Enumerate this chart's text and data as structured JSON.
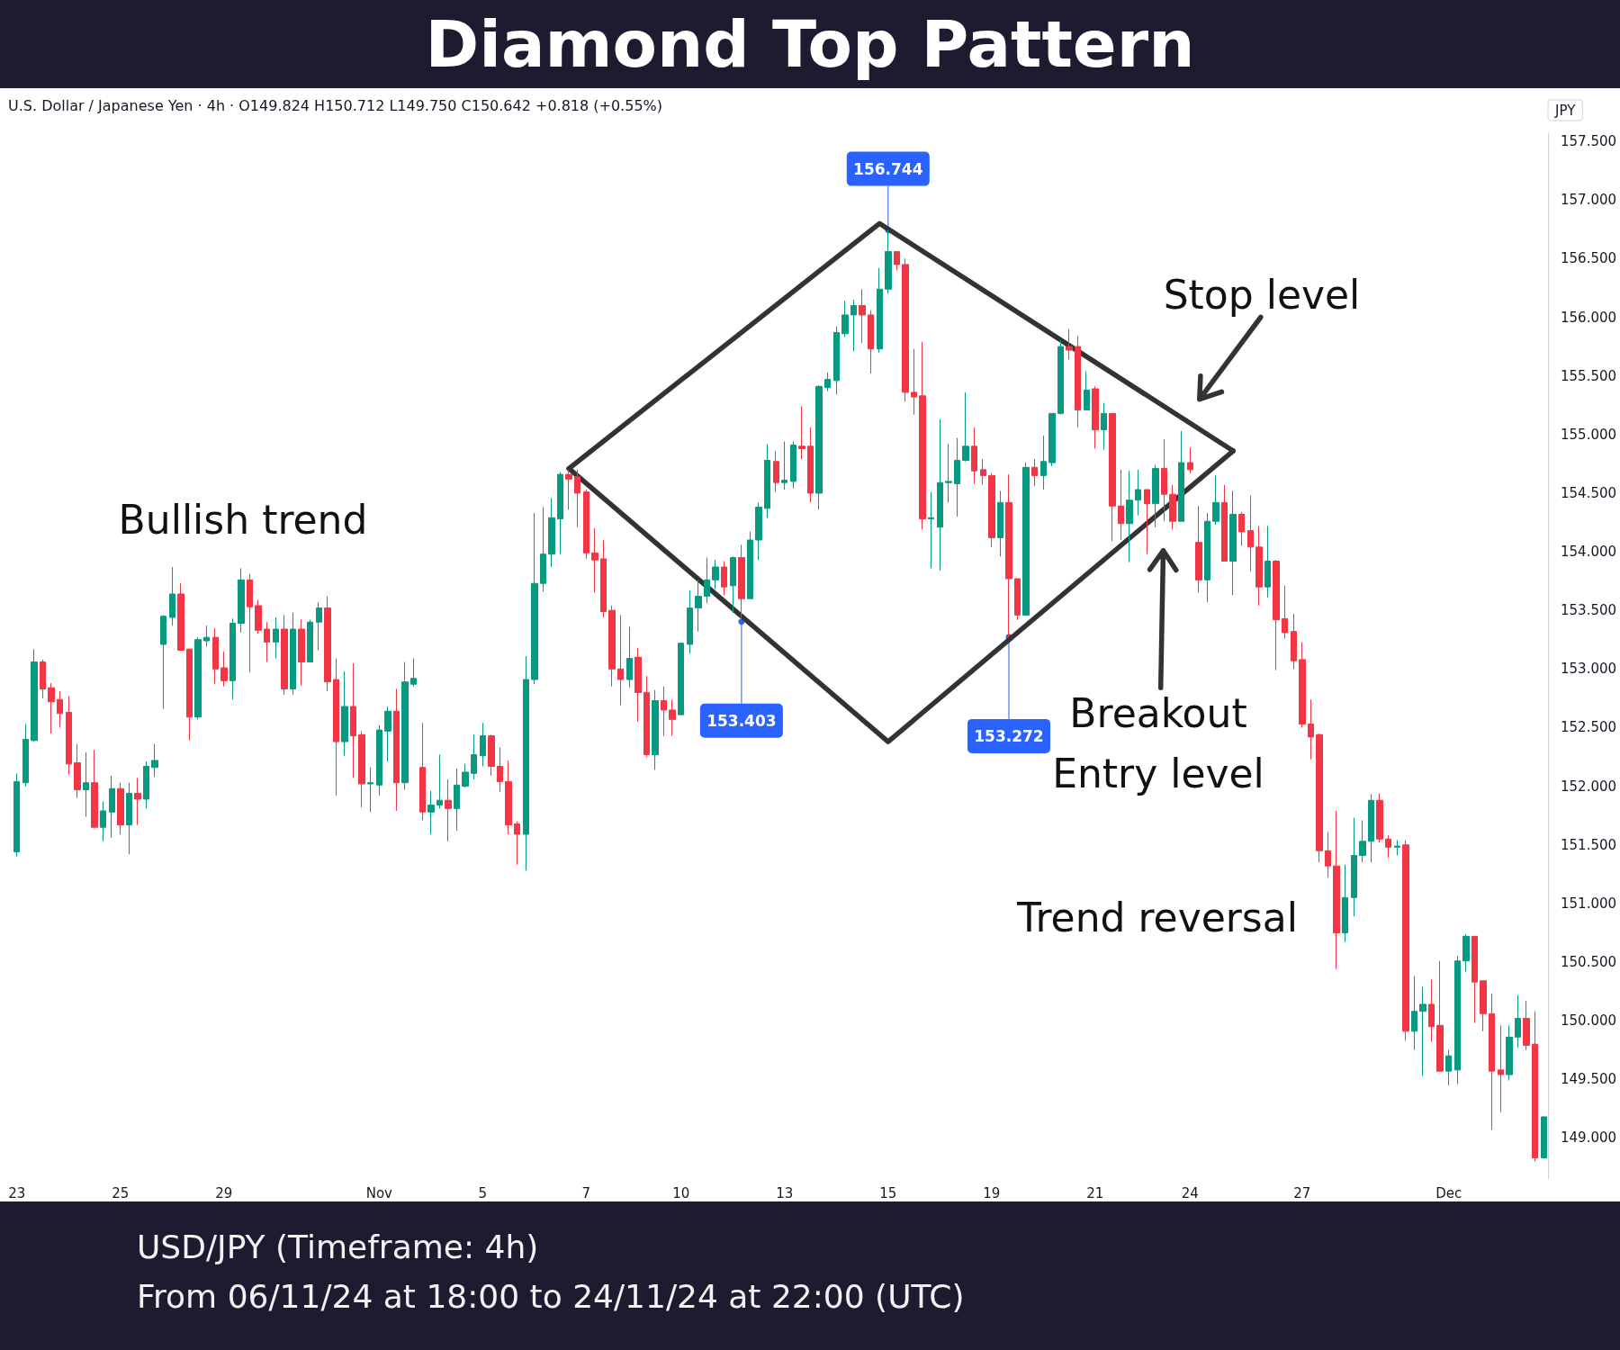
{
  "chart_data": {
    "type": "candlestick",
    "title": "Diamond Top Pattern",
    "subtitle": "USD/JPY (Timeframe: 4h)",
    "ylabel": "JPY",
    "annotations": [
      "U.S. Dollar / Japanese Yen · 4h · O149.824 H150.712 L149.750 C150.642 +0.818 (+0.55%)",
      "Bullish trend",
      "Stop level",
      "Breakout",
      "Entry level",
      "Trend reversal",
      {
        "text": "156.744",
        "y": 156.744
      },
      {
        "text": "153.403",
        "y": 153.403
      },
      {
        "text": "153.272",
        "y": 153.272
      },
      "From 06/11/24 at 18:00 to 24/11/24 at 22:00 (UTC)"
    ],
    "categories": [
      "23",
      null,
      null,
      null,
      null,
      null,
      null,
      null,
      null,
      null,
      null,
      null,
      "25",
      null,
      null,
      null,
      null,
      null,
      null,
      null,
      null,
      null,
      null,
      null,
      "29",
      null,
      null,
      null,
      null,
      null,
      null,
      null,
      null,
      null,
      null,
      null,
      null,
      null,
      null,
      null,
      null,
      null,
      "Nov",
      null,
      null,
      null,
      null,
      null,
      null,
      null,
      null,
      null,
      null,
      null,
      "5",
      null,
      null,
      null,
      null,
      null,
      null,
      null,
      null,
      null,
      null,
      null,
      "7",
      null,
      null,
      null,
      null,
      null,
      null,
      null,
      null,
      null,
      null,
      "10",
      null,
      null,
      null,
      null,
      null,
      null,
      null,
      null,
      null,
      null,
      null,
      "13",
      null,
      null,
      null,
      null,
      null,
      null,
      null,
      null,
      null,
      null,
      null,
      "15",
      null,
      null,
      null,
      null,
      null,
      null,
      null,
      null,
      null,
      null,
      null,
      "19",
      null,
      null,
      null,
      null,
      null,
      null,
      null,
      null,
      null,
      null,
      null,
      "21",
      null,
      null,
      null,
      null,
      null,
      null,
      null,
      null,
      null,
      null,
      "24",
      null,
      null,
      null,
      null,
      null,
      null,
      null,
      null,
      null,
      null,
      null,
      null,
      "27",
      null,
      null,
      null,
      null,
      null,
      null,
      null,
      null,
      null,
      null,
      null,
      null,
      null,
      null,
      null,
      null,
      "Dec",
      null,
      null,
      null,
      null,
      null,
      null,
      null,
      null,
      null,
      null,
      null
    ],
    "ohlc": [
      [
        151.44,
        152.11,
        151.4,
        152.04
      ],
      [
        152.03,
        152.53,
        152.0,
        152.4
      ],
      [
        152.39,
        153.17,
        152.38,
        153.06
      ],
      [
        153.06,
        153.08,
        152.75,
        152.83
      ],
      [
        152.84,
        152.88,
        152.45,
        152.72
      ],
      [
        152.74,
        152.81,
        152.5,
        152.62
      ],
      [
        152.63,
        152.77,
        152.1,
        152.19
      ],
      [
        152.2,
        152.36,
        151.9,
        151.97
      ],
      [
        151.97,
        152.29,
        151.74,
        152.03
      ],
      [
        152.03,
        152.31,
        151.64,
        151.65
      ],
      [
        151.65,
        151.87,
        151.53,
        151.79
      ],
      [
        151.78,
        152.09,
        151.56,
        151.98
      ],
      [
        151.98,
        152.03,
        151.59,
        151.67
      ],
      [
        151.67,
        152.03,
        151.42,
        151.94
      ],
      [
        151.94,
        152.07,
        151.67,
        151.89
      ],
      [
        151.89,
        152.21,
        151.81,
        152.17
      ],
      [
        152.16,
        152.36,
        152.08,
        152.22
      ],
      [
        153.21,
        153.46,
        152.66,
        153.45
      ],
      [
        153.44,
        153.87,
        153.37,
        153.64
      ],
      [
        153.64,
        153.73,
        153.16,
        153.16
      ],
      [
        153.17,
        153.17,
        152.39,
        152.59
      ],
      [
        152.59,
        153.27,
        152.57,
        153.25
      ],
      [
        153.24,
        153.37,
        153.19,
        153.27
      ],
      [
        153.27,
        153.35,
        152.87,
        153.0
      ],
      [
        153.01,
        153.15,
        152.85,
        152.9
      ],
      [
        152.9,
        153.43,
        152.74,
        153.39
      ],
      [
        153.39,
        153.86,
        153.31,
        153.76
      ],
      [
        153.76,
        153.81,
        152.97,
        153.53
      ],
      [
        153.54,
        153.59,
        153.3,
        153.33
      ],
      [
        153.34,
        153.4,
        153.06,
        153.23
      ],
      [
        153.23,
        153.44,
        153.09,
        153.34
      ],
      [
        153.34,
        153.46,
        152.78,
        152.83
      ],
      [
        152.83,
        153.48,
        152.78,
        153.34
      ],
      [
        153.34,
        153.42,
        152.86,
        153.06
      ],
      [
        153.06,
        153.42,
        153.06,
        153.4
      ],
      [
        153.4,
        153.57,
        153.16,
        153.52
      ],
      [
        153.52,
        153.62,
        152.81,
        152.89
      ],
      [
        152.91,
        153.09,
        151.92,
        152.38
      ],
      [
        152.38,
        152.98,
        152.26,
        152.68
      ],
      [
        152.68,
        153.05,
        152.07,
        152.43
      ],
      [
        152.44,
        152.47,
        151.82,
        152.02
      ],
      [
        152.02,
        152.16,
        151.78,
        152.03
      ],
      [
        152.01,
        152.52,
        151.92,
        152.48
      ],
      [
        152.47,
        152.68,
        152.21,
        152.64
      ],
      [
        152.64,
        152.83,
        151.79,
        152.03
      ],
      [
        152.03,
        153.06,
        151.97,
        152.89
      ],
      [
        152.87,
        153.09,
        152.85,
        152.92
      ],
      [
        152.16,
        152.54,
        151.71,
        151.78
      ],
      [
        151.78,
        151.96,
        151.59,
        151.84
      ],
      [
        151.84,
        152.27,
        151.81,
        151.88
      ],
      [
        151.88,
        152.06,
        151.53,
        151.81
      ],
      [
        151.81,
        152.15,
        151.62,
        152.01
      ],
      [
        152.0,
        152.19,
        151.99,
        152.12
      ],
      [
        152.11,
        152.44,
        152.06,
        152.27
      ],
      [
        152.26,
        152.54,
        152.17,
        152.43
      ],
      [
        152.43,
        152.44,
        152.09,
        152.17
      ],
      [
        152.17,
        152.33,
        151.95,
        152.04
      ],
      [
        152.04,
        152.22,
        151.59,
        151.67
      ],
      [
        151.68,
        151.7,
        151.33,
        151.59
      ],
      [
        151.59,
        153.11,
        151.28,
        152.91
      ],
      [
        152.91,
        154.33,
        152.87,
        153.73
      ],
      [
        153.73,
        154.38,
        153.66,
        153.98
      ],
      [
        153.98,
        154.46,
        153.87,
        154.29
      ],
      [
        154.28,
        154.68,
        153.98,
        154.66
      ],
      [
        154.66,
        154.7,
        154.36,
        154.62
      ],
      [
        154.64,
        154.7,
        154.21,
        154.5
      ],
      [
        154.51,
        154.53,
        153.94,
        153.99
      ],
      [
        153.99,
        154.2,
        153.65,
        153.93
      ],
      [
        153.94,
        154.1,
        153.44,
        153.49
      ],
      [
        153.5,
        153.54,
        152.85,
        153.0
      ],
      [
        153.0,
        153.46,
        152.69,
        152.91
      ],
      [
        152.91,
        153.36,
        152.84,
        153.09
      ],
      [
        153.1,
        153.18,
        152.55,
        152.8
      ],
      [
        152.8,
        152.94,
        152.25,
        152.27
      ],
      [
        152.27,
        152.82,
        152.14,
        152.73
      ],
      [
        152.73,
        152.85,
        152.43,
        152.65
      ],
      [
        152.65,
        152.74,
        152.43,
        152.57
      ],
      [
        152.61,
        153.22,
        152.61,
        153.22
      ],
      [
        153.21,
        153.67,
        153.13,
        153.52
      ],
      [
        153.52,
        153.76,
        153.32,
        153.62
      ],
      [
        153.62,
        153.95,
        153.56,
        153.76
      ],
      [
        153.76,
        153.93,
        153.68,
        153.87
      ],
      [
        153.87,
        153.92,
        153.63,
        153.7
      ],
      [
        153.71,
        153.96,
        153.48,
        153.95
      ],
      [
        153.95,
        154.06,
        153.403,
        153.6
      ],
      [
        153.6,
        154.17,
        153.6,
        154.1
      ],
      [
        154.1,
        154.42,
        153.93,
        154.38
      ],
      [
        154.37,
        154.92,
        154.29,
        154.78
      ],
      [
        154.77,
        154.86,
        154.51,
        154.59
      ],
      [
        154.59,
        154.94,
        154.53,
        154.61
      ],
      [
        154.6,
        154.94,
        154.54,
        154.91
      ],
      [
        154.9,
        155.24,
        154.79,
        154.88
      ],
      [
        154.9,
        155.06,
        154.42,
        154.5
      ],
      [
        154.5,
        155.42,
        154.36,
        155.41
      ],
      [
        155.4,
        155.53,
        155.37,
        155.47
      ],
      [
        155.46,
        155.92,
        155.34,
        155.87
      ],
      [
        155.86,
        156.14,
        155.83,
        156.02
      ],
      [
        156.02,
        156.15,
        155.71,
        156.1
      ],
      [
        156.1,
        156.24,
        155.78,
        156.02
      ],
      [
        156.02,
        156.06,
        155.52,
        155.73
      ],
      [
        155.73,
        156.42,
        155.7,
        156.24
      ],
      [
        156.24,
        156.744,
        156.2,
        156.56
      ],
      [
        156.56,
        156.56,
        156.4,
        156.45
      ],
      [
        156.45,
        156.5,
        155.28,
        155.36
      ],
      [
        155.36,
        155.73,
        155.17,
        155.32
      ],
      [
        155.33,
        155.79,
        154.19,
        154.28
      ],
      [
        154.28,
        154.51,
        153.86,
        154.29
      ],
      [
        154.21,
        155.13,
        153.84,
        154.59
      ],
      [
        154.59,
        154.92,
        154.42,
        154.6
      ],
      [
        154.58,
        154.97,
        154.3,
        154.78
      ],
      [
        154.78,
        155.36,
        154.77,
        154.9
      ],
      [
        154.9,
        155.06,
        154.58,
        154.69
      ],
      [
        154.7,
        154.79,
        154.57,
        154.65
      ],
      [
        154.65,
        154.67,
        154.04,
        154.12
      ],
      [
        154.12,
        154.52,
        153.96,
        154.42
      ],
      [
        154.42,
        154.66,
        153.272,
        153.77
      ],
      [
        153.77,
        153.77,
        153.42,
        153.46
      ],
      [
        153.46,
        154.76,
        153.46,
        154.72
      ],
      [
        154.72,
        154.79,
        154.56,
        154.65
      ],
      [
        154.65,
        154.99,
        154.53,
        154.77
      ],
      [
        154.76,
        155.18,
        154.73,
        155.18
      ],
      [
        155.18,
        155.81,
        155.17,
        155.75
      ],
      [
        155.75,
        155.9,
        155.64,
        155.72
      ],
      [
        155.75,
        155.84,
        155.06,
        155.21
      ],
      [
        155.21,
        155.54,
        155.21,
        155.38
      ],
      [
        155.39,
        155.41,
        154.88,
        155.04
      ],
      [
        155.04,
        155.27,
        154.87,
        155.18
      ],
      [
        155.18,
        155.18,
        154.09,
        154.39
      ],
      [
        154.39,
        154.7,
        154.1,
        154.24
      ],
      [
        154.24,
        154.69,
        153.91,
        154.44
      ],
      [
        154.44,
        154.7,
        154.31,
        154.53
      ],
      [
        154.53,
        154.53,
        153.98,
        154.41
      ],
      [
        154.41,
        154.74,
        154.21,
        154.71
      ],
      [
        154.71,
        154.96,
        154.26,
        154.49
      ],
      [
        154.49,
        154.57,
        154.19,
        154.26
      ],
      [
        154.26,
        155.03,
        154.26,
        154.76
      ],
      [
        154.76,
        154.89,
        154.67,
        154.7
      ],
      [
        154.08,
        154.39,
        153.65,
        153.76
      ],
      [
        153.76,
        154.33,
        153.57,
        154.26
      ],
      [
        154.26,
        154.65,
        154.23,
        154.42
      ],
      [
        154.42,
        154.57,
        153.92,
        153.92
      ],
      [
        153.92,
        154.52,
        153.63,
        154.32
      ],
      [
        154.32,
        154.34,
        154.05,
        154.17
      ],
      [
        154.18,
        154.48,
        153.83,
        154.04
      ],
      [
        154.04,
        154.22,
        153.54,
        153.7
      ],
      [
        153.7,
        154.22,
        153.61,
        153.92
      ],
      [
        153.92,
        153.93,
        152.99,
        153.42
      ],
      [
        153.43,
        153.71,
        153.26,
        153.31
      ],
      [
        153.32,
        153.47,
        153.0,
        153.07
      ],
      [
        153.08,
        153.23,
        152.5,
        152.53
      ],
      [
        152.53,
        152.74,
        152.23,
        152.42
      ],
      [
        152.44,
        152.45,
        151.35,
        151.45
      ],
      [
        151.45,
        151.61,
        151.22,
        151.32
      ],
      [
        151.32,
        151.79,
        150.44,
        150.75
      ],
      [
        150.75,
        151.33,
        150.67,
        151.05
      ],
      [
        151.05,
        151.73,
        150.89,
        151.41
      ],
      [
        151.41,
        151.71,
        151.35,
        151.53
      ],
      [
        151.53,
        151.93,
        151.35,
        151.88
      ],
      [
        151.88,
        151.94,
        151.52,
        151.55
      ],
      [
        151.55,
        151.58,
        151.39,
        151.48
      ],
      [
        151.48,
        151.54,
        151.41,
        151.49
      ],
      [
        151.5,
        151.54,
        149.83,
        149.91
      ],
      [
        149.91,
        150.38,
        149.75,
        150.08
      ],
      [
        150.08,
        150.29,
        149.53,
        150.14
      ],
      [
        150.14,
        150.35,
        149.82,
        149.95
      ],
      [
        149.96,
        150.51,
        149.57,
        149.57
      ],
      [
        149.57,
        149.75,
        149.45,
        149.7
      ],
      [
        149.58,
        150.55,
        149.46,
        150.51
      ],
      [
        150.51,
        150.74,
        150.42,
        150.72
      ],
      [
        150.72,
        150.72,
        149.98,
        150.33
      ],
      [
        150.34,
        150.34,
        149.91,
        150.06
      ],
      [
        150.06,
        150.23,
        149.07,
        149.57
      ],
      [
        149.58,
        149.96,
        149.22,
        149.54
      ],
      [
        149.54,
        149.96,
        149.49,
        149.86
      ],
      [
        149.86,
        150.22,
        149.77,
        150.02
      ],
      [
        150.02,
        150.17,
        149.75,
        149.79
      ],
      [
        149.8,
        150.08,
        148.8,
        148.83
      ],
      [
        148.83,
        149.18,
        148.83,
        149.18
      ]
    ],
    "colors": [
      "#089981",
      "#089981",
      "#089981",
      "#f23645",
      "#f23645",
      "#f23645",
      "#f23645",
      "#f23645",
      "#089981",
      "#f23645",
      "#089981",
      "#089981",
      "#f23645",
      "#089981",
      "#f23645",
      "#089981",
      "#089981",
      "#089981",
      "#089981",
      "#f23645",
      "#f23645",
      "#089981",
      "#089981",
      "#f23645",
      "#f23645",
      "#089981",
      "#089981",
      "#f23645",
      "#f23645",
      "#f23645",
      "#089981",
      "#f23645",
      "#089981",
      "#f23645",
      "#089981",
      "#089981",
      "#f23645",
      "#f23645",
      "#089981",
      "#f23645",
      "#f23645",
      "#089981",
      "#089981",
      "#089981",
      "#f23645",
      "#089981",
      "#089981",
      "#f23645",
      "#089981",
      "#089981",
      "#f23645",
      "#089981",
      "#089981",
      "#089981",
      "#089981",
      "#f23645",
      "#f23645",
      "#f23645",
      "#f23645",
      "#089981",
      "#089981",
      "#089981",
      "#089981",
      "#089981",
      "#f23645",
      "#f23645",
      "#f23645",
      "#f23645",
      "#f23645",
      "#f23645",
      "#f23645",
      "#089981",
      "#f23645",
      "#f23645",
      "#089981",
      "#f23645",
      "#f23645",
      "#089981",
      "#089981",
      "#089981",
      "#089981",
      "#089981",
      "#f23645",
      "#089981",
      "#f23645",
      "#089981",
      "#089981",
      "#089981",
      "#f23645",
      "#089981",
      "#089981",
      "#f23645",
      "#f23645",
      "#089981",
      "#089981",
      "#089981",
      "#089981",
      "#089981",
      "#f23645",
      "#f23645",
      "#089981",
      "#089981",
      "#f23645",
      "#f23645",
      "#f23645",
      "#f23645",
      "#089981",
      "#089981",
      "#089981",
      "#089981",
      "#089981",
      "#f23645",
      "#f23645",
      "#f23645",
      "#089981",
      "#f23645",
      "#f23645",
      "#089981",
      "#f23645",
      "#089981",
      "#089981",
      "#089981",
      "#f23645",
      "#f23645",
      "#089981",
      "#f23645",
      "#089981",
      "#f23645",
      "#f23645",
      "#089981",
      "#089981",
      "#f23645",
      "#089981",
      "#f23645",
      "#f23645",
      "#089981",
      "#f23645",
      "#f23645",
      "#089981",
      "#089981",
      "#f23645",
      "#089981",
      "#f23645",
      "#f23645",
      "#f23645",
      "#089981",
      "#f23645",
      "#f23645",
      "#f23645",
      "#f23645",
      "#f23645",
      "#f23645",
      "#f23645",
      "#f23645",
      "#089981",
      "#089981",
      "#089981",
      "#089981",
      "#f23645",
      "#f23645",
      "#089981",
      "#f23645",
      "#089981",
      "#089981",
      "#f23645",
      "#f23645",
      "#089981",
      "#089981",
      "#089981",
      "#f23645",
      "#f23645",
      "#f23645",
      "#f23645",
      "#089981",
      "#089981",
      "#f23645",
      "#f23645",
      "#089981"
    ],
    "series": [
      {
        "type": "line",
        "color": "#333333",
        "values": [
          null,
          null,
          null,
          null,
          null,
          null,
          null,
          null,
          null,
          null,
          null,
          null,
          null,
          null,
          null,
          null,
          null,
          null,
          null,
          null,
          null,
          null,
          null,
          null,
          null,
          null,
          null,
          null,
          null,
          null,
          null,
          null,
          null,
          null,
          null,
          null,
          null,
          null,
          null,
          null,
          null,
          null,
          null,
          null,
          null,
          null,
          null,
          null,
          null,
          null,
          null,
          null,
          null,
          null,
          null,
          null,
          null,
          null,
          null,
          null,
          null,
          null,
          null,
          null,
          154.71,
          null,
          null,
          null,
          null,
          null,
          null,
          null,
          null,
          null,
          null,
          null,
          null,
          null,
          null,
          null,
          null,
          null,
          null,
          null,
          null,
          null,
          null,
          null,
          null,
          null,
          null,
          null,
          null,
          null,
          null,
          null,
          null,
          null,
          null,
          null,
          156.8,
          null,
          null,
          null,
          null,
          null,
          null,
          null,
          null,
          null,
          null,
          null,
          null,
          null,
          null,
          null,
          null,
          null,
          null,
          null,
          null,
          null,
          null,
          null,
          null,
          null,
          null,
          null,
          null,
          null,
          null,
          null,
          null,
          null,
          null,
          null,
          null,
          null,
          null,
          null,
          null,
          154.86,
          null,
          null,
          null,
          null,
          null,
          null,
          null,
          null,
          null,
          null,
          null,
          null,
          null,
          null,
          null,
          null,
          null,
          null,
          null,
          null,
          null,
          null,
          null,
          null,
          null,
          null,
          null,
          null,
          null,
          null,
          null,
          null,
          null,
          null,
          null,
          null
        ]
      },
      {
        "type": "line",
        "color": "#333333",
        "values": [
          null,
          null,
          null,
          null,
          null,
          null,
          null,
          null,
          null,
          null,
          null,
          null,
          null,
          null,
          null,
          null,
          null,
          null,
          null,
          null,
          null,
          null,
          null,
          null,
          null,
          null,
          null,
          null,
          null,
          null,
          null,
          null,
          null,
          null,
          null,
          null,
          null,
          null,
          null,
          null,
          null,
          null,
          null,
          null,
          null,
          null,
          null,
          null,
          null,
          null,
          null,
          null,
          null,
          null,
          null,
          null,
          null,
          null,
          null,
          null,
          null,
          null,
          null,
          null,
          154.71,
          null,
          null,
          null,
          null,
          null,
          null,
          null,
          null,
          null,
          null,
          null,
          null,
          null,
          null,
          null,
          null,
          null,
          null,
          null,
          null,
          null,
          null,
          null,
          null,
          null,
          null,
          null,
          null,
          null,
          null,
          null,
          null,
          null,
          null,
          null,
          null,
          152.38,
          null,
          null,
          null,
          null,
          null,
          null,
          null,
          null,
          null,
          null,
          null,
          null,
          null,
          null,
          null,
          null,
          null,
          null,
          null,
          null,
          null,
          null,
          null,
          null,
          null,
          null,
          null,
          null,
          null,
          null,
          null,
          null,
          null,
          null,
          null,
          null,
          null,
          null,
          null,
          154.86,
          null,
          null,
          null,
          null,
          null,
          null,
          null,
          null,
          null,
          null,
          null,
          null,
          null,
          null,
          null,
          null,
          null,
          null,
          null,
          null,
          null,
          null,
          null,
          null,
          null,
          null,
          null,
          null,
          null,
          null,
          null,
          null,
          null,
          null,
          null,
          null
        ]
      }
    ],
    "ylim": [
      148.65,
      157.57
    ],
    "yticks": [
      {
        "value": 149,
        "label": "149.000"
      },
      {
        "value": 149.5,
        "label": "149.500"
      },
      {
        "value": 150,
        "label": "150.000"
      },
      {
        "value": 150.5,
        "label": "150.500"
      },
      {
        "value": 151,
        "label": "151.000"
      },
      {
        "value": 151.5,
        "label": "151.500"
      },
      {
        "value": 152,
        "label": "152.000"
      },
      {
        "value": 152.5,
        "label": "152.500"
      },
      {
        "value": 153,
        "label": "153.000"
      },
      {
        "value": 153.5,
        "label": "153.500"
      },
      {
        "value": 154,
        "label": "154.000"
      },
      {
        "value": 154.5,
        "label": "154.500"
      },
      {
        "value": 155,
        "label": "155.000"
      },
      {
        "value": 155.5,
        "label": "155.500"
      },
      {
        "value": 156,
        "label": "156.000"
      },
      {
        "value": 156.5,
        "label": "156.500"
      },
      {
        "value": 157,
        "label": "157.000"
      },
      {
        "value": 157.5,
        "label": "157.500"
      }
    ]
  }
}
